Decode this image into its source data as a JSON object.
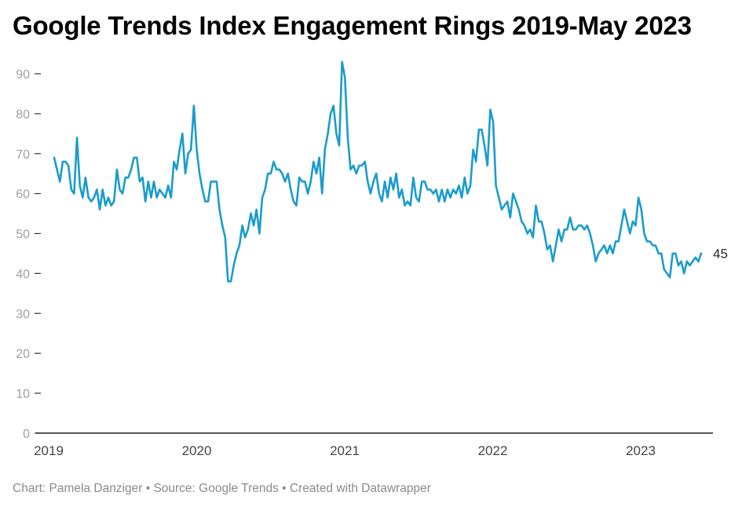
{
  "chart_data": {
    "type": "line",
    "title": "Google Trends Index Engagement Rings 2019-May 2023",
    "xlabel": "",
    "ylabel": "",
    "ylim": [
      0,
      90
    ],
    "yticks": [
      0,
      10,
      20,
      30,
      40,
      50,
      60,
      70,
      80,
      90
    ],
    "xticks": [
      {
        "label": "2019",
        "x": 2019
      },
      {
        "label": "2020",
        "x": 2020
      },
      {
        "label": "2021",
        "x": 2021
      },
      {
        "label": "2022",
        "x": 2022
      },
      {
        "label": "2023",
        "x": 2023
      }
    ],
    "x_start": 2019,
    "weeks_per_year": 52,
    "grid": false,
    "series": [
      {
        "name": "Engagement Rings",
        "color": "#1a9ccc",
        "end_label": "45",
        "values": [
          69,
          66,
          63,
          68,
          68,
          67,
          61,
          60,
          74,
          62,
          59,
          64,
          59,
          58,
          59,
          61,
          56,
          61,
          57,
          59,
          57,
          58,
          66,
          61,
          60,
          64,
          64,
          66,
          69,
          69,
          63,
          64,
          58,
          63,
          59,
          63,
          59,
          61,
          60,
          59,
          62,
          59,
          68,
          66,
          71,
          75,
          65,
          70,
          71,
          82,
          71,
          65,
          61,
          58,
          58,
          63,
          63,
          63,
          56,
          52,
          49,
          38,
          38,
          42,
          45,
          47,
          52,
          49,
          51,
          55,
          52,
          56,
          50,
          59,
          61,
          65,
          65,
          68,
          66,
          66,
          65,
          63,
          65,
          61,
          58,
          57,
          64,
          63,
          63,
          60,
          63,
          68,
          65,
          69,
          60,
          71,
          75,
          80,
          82,
          75,
          72,
          93,
          89,
          74,
          66,
          67,
          65,
          67,
          67,
          68,
          63,
          60,
          63,
          65,
          60,
          58,
          63,
          59,
          64,
          61,
          65,
          59,
          61,
          57,
          58,
          57,
          64,
          59,
          58,
          63,
          63,
          61,
          61,
          60,
          61,
          58,
          61,
          58,
          61,
          59,
          61,
          60,
          62,
          59,
          64,
          60,
          62,
          71,
          68,
          76,
          76,
          72,
          67,
          81,
          78,
          62,
          59,
          56,
          57,
          58,
          54,
          60,
          58,
          56,
          53,
          52,
          50,
          51,
          49,
          57,
          53,
          53,
          50,
          46,
          47,
          43,
          47,
          51,
          48,
          51,
          51,
          54,
          51,
          51,
          52,
          52,
          51,
          52,
          50,
          47,
          43,
          45,
          46,
          47,
          45,
          47,
          45,
          48,
          48,
          52,
          56,
          53,
          50,
          53,
          52,
          59,
          56,
          50,
          48,
          48,
          47,
          47,
          45,
          45,
          41,
          40,
          39,
          45,
          45,
          42,
          43,
          40,
          43,
          42,
          43,
          44,
          43,
          45
        ]
      }
    ]
  },
  "footer": {
    "text": "Chart: Pamela Danziger • Source: Google Trends • Created with Datawrapper"
  }
}
